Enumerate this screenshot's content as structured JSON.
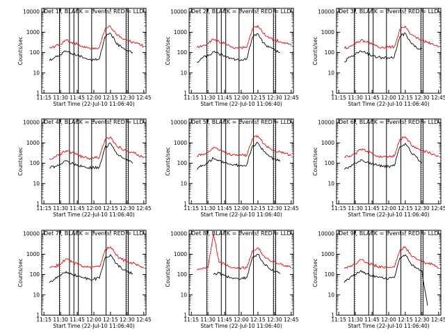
{
  "figure": {
    "xlabel": "Start Time (22-Jul-10 11:06:40)",
    "ylabel": "Counts/sec",
    "x_tick_labels": [
      "11:15",
      "11:30",
      "11:45",
      "12:00",
      "12:15",
      "12:30",
      "12:45"
    ],
    "y_tick_labels": [
      "1",
      "10",
      "100",
      "1000",
      "10000"
    ],
    "colors": {
      "events": "#000000",
      "lld": "#ff0000"
    },
    "scale": "log"
  },
  "chart_data": [
    {
      "type": "line",
      "title": "Det 1f, BLACK = Events, RED = LLD",
      "x": [
        "11:15",
        "11:20",
        "11:25",
        "11:30",
        "11:35",
        "11:40",
        "11:45",
        "11:50",
        "11:55",
        "12:00",
        "12:05",
        "12:10",
        "12:15",
        "12:20",
        "12:25",
        "12:30",
        "12:35",
        "12:40",
        "12:45"
      ],
      "xlim": [
        "11:13",
        "12:47"
      ],
      "ylim": [
        1,
        15000
      ],
      "yscale": "log",
      "series": [
        {
          "name": "Events",
          "color": "#000000",
          "values": [
            null,
            40,
            60,
            80,
            120,
            90,
            75,
            55,
            45,
            45,
            50,
            600,
            900,
            300,
            180,
            130,
            100,
            null,
            null
          ]
        },
        {
          "name": "LLD",
          "color": "#ff0000",
          "values": [
            null,
            170,
            200,
            260,
            400,
            320,
            260,
            190,
            170,
            170,
            180,
            1400,
            1900,
            800,
            500,
            400,
            330,
            280,
            200
          ]
        }
      ],
      "markers": [
        "11:29",
        "11:38",
        "11:42",
        "11:46",
        "11:58",
        "12:11",
        "12:29",
        "12:31"
      ]
    },
    {
      "type": "line",
      "title": "Det 2f, BLACK = Events, RED = LLD",
      "x": [
        "11:15",
        "11:20",
        "11:25",
        "11:30",
        "11:35",
        "11:40",
        "11:45",
        "11:50",
        "11:55",
        "12:00",
        "12:05",
        "12:10",
        "12:15",
        "12:20",
        "12:25",
        "12:30",
        "12:35",
        "12:40",
        "12:45"
      ],
      "xlim": [
        "11:13",
        "12:47"
      ],
      "ylim": [
        1,
        15000
      ],
      "yscale": "log",
      "series": [
        {
          "name": "Events",
          "color": "#000000",
          "values": [
            null,
            35,
            55,
            70,
            110,
            85,
            70,
            55,
            45,
            45,
            50,
            550,
            850,
            300,
            180,
            130,
            100,
            null,
            null
          ]
        },
        {
          "name": "LLD",
          "color": "#ff0000",
          "values": [
            null,
            180,
            210,
            280,
            450,
            350,
            280,
            200,
            180,
            180,
            190,
            1500,
            2100,
            850,
            520,
            420,
            350,
            300,
            220
          ]
        }
      ],
      "markers": [
        "11:29",
        "11:38",
        "11:42",
        "11:46",
        "11:58",
        "12:11",
        "12:29",
        "12:31"
      ]
    },
    {
      "type": "line",
      "title": "Det 3f, BLACK = Events, RED = LLD",
      "x": [
        "11:15",
        "11:20",
        "11:25",
        "11:30",
        "11:35",
        "11:40",
        "11:45",
        "11:50",
        "11:55",
        "12:00",
        "12:05",
        "12:10",
        "12:15",
        "12:20",
        "12:25",
        "12:30",
        "12:35",
        "12:40",
        "12:45"
      ],
      "xlim": [
        "11:13",
        "12:47"
      ],
      "ylim": [
        1,
        15000
      ],
      "yscale": "log",
      "series": [
        {
          "name": "Events",
          "color": "#000000",
          "values": [
            null,
            35,
            60,
            80,
            120,
            90,
            70,
            60,
            55,
            55,
            60,
            600,
            900,
            300,
            180,
            150,
            null,
            null,
            null
          ]
        },
        {
          "name": "LLD",
          "color": "#ff0000",
          "values": [
            null,
            160,
            200,
            280,
            420,
            330,
            260,
            200,
            180,
            180,
            190,
            1400,
            2000,
            800,
            500,
            400,
            330,
            260,
            180
          ]
        }
      ],
      "markers": [
        "11:29",
        "11:42",
        "11:46",
        "11:58",
        "12:11",
        "12:29",
        "12:31"
      ]
    },
    {
      "type": "line",
      "title": "Det 4f, BLACK = Events, RED = LLD",
      "x": [
        "11:15",
        "11:20",
        "11:25",
        "11:30",
        "11:35",
        "11:40",
        "11:45",
        "11:50",
        "11:55",
        "12:00",
        "12:05",
        "12:10",
        "12:15",
        "12:20",
        "12:25",
        "12:30",
        "12:35",
        "12:40",
        "12:45"
      ],
      "xlim": [
        "11:13",
        "12:47"
      ],
      "ylim": [
        1,
        15000
      ],
      "yscale": "log",
      "series": [
        {
          "name": "Events",
          "color": "#000000",
          "values": [
            null,
            60,
            70,
            90,
            130,
            100,
            85,
            70,
            60,
            60,
            65,
            600,
            950,
            350,
            200,
            140,
            100,
            null,
            null
          ]
        },
        {
          "name": "LLD",
          "color": "#ff0000",
          "values": [
            null,
            170,
            200,
            280,
            420,
            330,
            260,
            200,
            180,
            180,
            190,
            1400,
            2000,
            800,
            500,
            400,
            330,
            260,
            180
          ]
        }
      ],
      "markers": [
        "11:29",
        "11:38",
        "11:42",
        "11:46",
        "11:58",
        "12:11",
        "12:29",
        "12:31"
      ]
    },
    {
      "type": "line",
      "title": "Det 5f, BLACK = Events, RED = LLD",
      "x": [
        "11:15",
        "11:20",
        "11:25",
        "11:30",
        "11:35",
        "11:40",
        "11:45",
        "11:50",
        "11:55",
        "12:00",
        "12:05",
        "12:10",
        "12:15",
        "12:20",
        "12:25",
        "12:30",
        "12:35",
        "12:40",
        "12:45"
      ],
      "xlim": [
        "11:13",
        "12:47"
      ],
      "ylim": [
        1,
        15000
      ],
      "yscale": "log",
      "series": [
        {
          "name": "Events",
          "color": "#000000",
          "values": [
            null,
            50,
            80,
            110,
            180,
            130,
            110,
            90,
            80,
            80,
            85,
            700,
            1000,
            400,
            220,
            160,
            120,
            null,
            null
          ]
        },
        {
          "name": "LLD",
          "color": "#ff0000",
          "values": [
            null,
            230,
            260,
            340,
            600,
            420,
            340,
            260,
            240,
            240,
            250,
            1600,
            2200,
            900,
            560,
            440,
            360,
            300,
            240
          ]
        }
      ],
      "markers": [
        "11:29",
        "11:42",
        "11:46",
        "11:58",
        "12:11",
        "12:29",
        "12:31"
      ]
    },
    {
      "type": "line",
      "title": "Det 6f, BLACK = Events, RED = LLD",
      "x": [
        "11:15",
        "11:20",
        "11:25",
        "11:30",
        "11:35",
        "11:40",
        "11:45",
        "11:50",
        "11:55",
        "12:00",
        "12:05",
        "12:10",
        "12:15",
        "12:20",
        "12:25",
        "12:30",
        "12:35",
        "12:40",
        "12:45"
      ],
      "xlim": [
        "11:13",
        "12:47"
      ],
      "ylim": [
        1,
        15000
      ],
      "yscale": "log",
      "series": [
        {
          "name": "Events",
          "color": "#000000",
          "values": [
            null,
            50,
            70,
            100,
            150,
            110,
            95,
            80,
            70,
            70,
            75,
            650,
            950,
            350,
            200,
            100,
            null,
            null,
            null
          ]
        },
        {
          "name": "LLD",
          "color": "#ff0000",
          "values": [
            null,
            200,
            230,
            300,
            500,
            380,
            300,
            230,
            210,
            210,
            220,
            1500,
            2000,
            850,
            520,
            420,
            340,
            280,
            220
          ]
        }
      ],
      "markers": [
        "11:29",
        "11:42",
        "11:46",
        "11:58",
        "12:11",
        "12:29",
        "12:31"
      ]
    },
    {
      "type": "line",
      "title": "Det 7f, BLACK = Events, RED = LLD",
      "x": [
        "11:15",
        "11:20",
        "11:25",
        "11:30",
        "11:35",
        "11:40",
        "11:45",
        "11:50",
        "11:55",
        "12:00",
        "12:05",
        "12:10",
        "12:15",
        "12:20",
        "12:25",
        "12:30",
        "12:35",
        "12:40",
        "12:45"
      ],
      "xlim": [
        "11:13",
        "12:47"
      ],
      "ylim": [
        1,
        15000
      ],
      "yscale": "log",
      "series": [
        {
          "name": "Events",
          "color": "#000000",
          "values": [
            null,
            40,
            60,
            90,
            140,
            100,
            85,
            70,
            60,
            60,
            65,
            650,
            950,
            350,
            200,
            140,
            110,
            null,
            null
          ]
        },
        {
          "name": "LLD",
          "color": "#ff0000",
          "values": [
            null,
            220,
            250,
            330,
            600,
            420,
            330,
            250,
            230,
            230,
            240,
            1600,
            2300,
            900,
            560,
            440,
            360,
            300,
            220
          ]
        }
      ],
      "markers": [
        "11:29",
        "11:38",
        "11:42",
        "11:46",
        "11:58",
        "12:11",
        "12:29",
        "12:31"
      ]
    },
    {
      "type": "line",
      "title": "Det 8f, BLACK = Events, RED = LLD",
      "x": [
        "11:15",
        "11:20",
        "11:25",
        "11:30",
        "11:35",
        "11:40",
        "11:45",
        "11:50",
        "11:55",
        "12:00",
        "12:05",
        "12:10",
        "12:15",
        "12:20",
        "12:25",
        "12:30",
        "12:35",
        "12:40",
        "12:45"
      ],
      "xlim": [
        "11:13",
        "12:47"
      ],
      "ylim": [
        1,
        15000
      ],
      "yscale": "log",
      "series": [
        {
          "name": "Events",
          "color": "#000000",
          "values": [
            null,
            null,
            null,
            null,
            100,
            120,
            90,
            70,
            65,
            65,
            70,
            700,
            1000,
            350,
            200,
            140,
            110,
            null,
            null
          ]
        },
        {
          "name": "LLD",
          "color": "#ff0000",
          "values": [
            null,
            170,
            190,
            220,
            10000,
            400,
            320,
            240,
            210,
            210,
            220,
            1500,
            2100,
            850,
            520,
            420,
            340,
            280,
            220
          ]
        }
      ],
      "markers": [
        "11:29",
        "11:42",
        "11:46",
        "11:58",
        "12:11",
        "12:29",
        "12:31"
      ]
    },
    {
      "type": "line",
      "title": "Det 9f, BLACK = Events, RED = LLD",
      "x": [
        "11:15",
        "11:20",
        "11:25",
        "11:30",
        "11:35",
        "11:40",
        "11:45",
        "11:50",
        "11:55",
        "12:00",
        "12:05",
        "12:10",
        "12:15",
        "12:20",
        "12:25",
        "12:30",
        "12:35",
        "12:40",
        "12:45"
      ],
      "xlim": [
        "11:13",
        "12:47"
      ],
      "ylim": [
        1,
        15000
      ],
      "yscale": "log",
      "series": [
        {
          "name": "Events",
          "color": "#000000",
          "values": [
            null,
            40,
            70,
            100,
            160,
            110,
            90,
            75,
            65,
            65,
            70,
            650,
            950,
            350,
            200,
            150,
            3,
            null,
            null
          ]
        },
        {
          "name": "LLD",
          "color": "#ff0000",
          "values": [
            null,
            200,
            240,
            320,
            550,
            400,
            320,
            240,
            220,
            220,
            230,
            1500,
            2300,
            900,
            560,
            440,
            360,
            300,
            200
          ]
        }
      ],
      "markers": [
        "11:29",
        "11:42",
        "11:46",
        "11:58",
        "12:11",
        "12:29",
        "12:31"
      ]
    }
  ]
}
